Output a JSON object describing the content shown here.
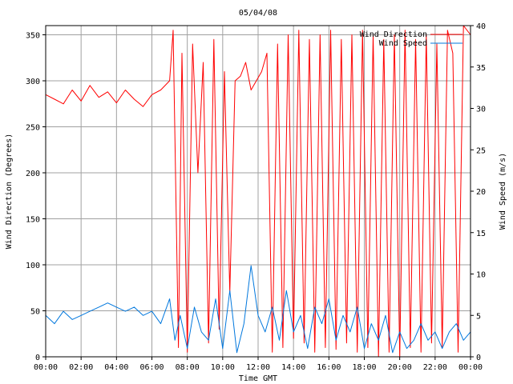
{
  "chart_data": {
    "type": "line",
    "title": "05/04/08",
    "xlabel": "Time GMT",
    "ylabel_left": "Wind Direction (Degrees)",
    "ylabel_right": "Wind Speed (m/s)",
    "x_ticks": [
      "00:00",
      "02:00",
      "04:00",
      "06:00",
      "08:00",
      "10:00",
      "12:00",
      "14:00",
      "16:00",
      "18:00",
      "20:00",
      "22:00",
      "00:00"
    ],
    "x_range_hours": [
      0,
      24
    ],
    "y_left": {
      "range": [
        0,
        360
      ],
      "ticks": [
        0,
        50,
        100,
        150,
        200,
        250,
        300,
        350
      ]
    },
    "y_right": {
      "range": [
        0,
        40
      ],
      "ticks": [
        0,
        5,
        10,
        15,
        20,
        25,
        30,
        35,
        40
      ]
    },
    "grid": true,
    "legend_position": "top-right",
    "series": [
      {
        "name": "Wind Direction",
        "axis": "left",
        "color": "#ff0000",
        "x_hours": [
          0,
          0.5,
          1,
          1.5,
          2,
          2.5,
          3,
          3.5,
          4,
          4.5,
          5,
          5.5,
          6,
          6.5,
          7,
          7.2,
          7.5,
          7.7,
          8,
          8.3,
          8.6,
          8.9,
          9.2,
          9.5,
          9.8,
          10.1,
          10.4,
          10.7,
          11,
          11.3,
          11.6,
          11.9,
          12.2,
          12.5,
          12.8,
          13.1,
          13.4,
          13.7,
          14,
          14.3,
          14.6,
          14.9,
          15.2,
          15.5,
          15.8,
          16.1,
          16.4,
          16.7,
          17,
          17.3,
          17.6,
          17.9,
          18.2,
          18.5,
          18.8,
          19.1,
          19.4,
          19.7,
          20,
          20.3,
          20.6,
          20.9,
          21.2,
          21.5,
          21.8,
          22.1,
          22.4,
          22.7,
          23,
          23.3,
          23.6,
          24
        ],
        "values": [
          285,
          280,
          275,
          290,
          278,
          295,
          282,
          288,
          276,
          290,
          280,
          272,
          285,
          290,
          300,
          355,
          10,
          330,
          5,
          340,
          200,
          320,
          15,
          345,
          30,
          310,
          70,
          300,
          305,
          320,
          290,
          300,
          310,
          330,
          5,
          340,
          10,
          350,
          20,
          355,
          15,
          345,
          5,
          350,
          10,
          355,
          8,
          345,
          15,
          350,
          5,
          355,
          10,
          350,
          0,
          345,
          5,
          350,
          0,
          355,
          10,
          345,
          5,
          350,
          15,
          340,
          10,
          355,
          330,
          5,
          360,
          350
        ]
      },
      {
        "name": "Wind Speed",
        "axis": "right",
        "color": "#0077dd",
        "x_hours": [
          0,
          0.5,
          1,
          1.5,
          2,
          2.5,
          3,
          3.5,
          4,
          4.5,
          5,
          5.5,
          6,
          6.5,
          7,
          7.3,
          7.6,
          8,
          8.4,
          8.8,
          9.2,
          9.6,
          10,
          10.4,
          10.8,
          11.2,
          11.6,
          12,
          12.4,
          12.8,
          13.2,
          13.6,
          14,
          14.4,
          14.8,
          15.2,
          15.6,
          16,
          16.4,
          16.8,
          17.2,
          17.6,
          18,
          18.4,
          18.8,
          19.2,
          19.6,
          20,
          20.4,
          20.8,
          21.2,
          21.6,
          22,
          22.4,
          22.8,
          23.2,
          23.6,
          24
        ],
        "values": [
          5,
          4,
          5.5,
          4.5,
          5,
          5.5,
          6,
          6.5,
          6,
          5.5,
          6,
          5,
          5.5,
          4,
          7,
          2,
          5,
          1,
          6,
          3,
          2,
          7,
          1,
          8,
          0.5,
          4,
          11,
          5,
          3,
          6,
          2,
          8,
          3,
          5,
          1,
          6,
          4,
          7,
          2,
          5,
          3,
          6,
          1,
          4,
          2,
          5,
          0.5,
          3,
          1,
          2,
          4,
          2,
          3,
          1,
          3,
          4,
          2,
          3
        ]
      }
    ]
  }
}
